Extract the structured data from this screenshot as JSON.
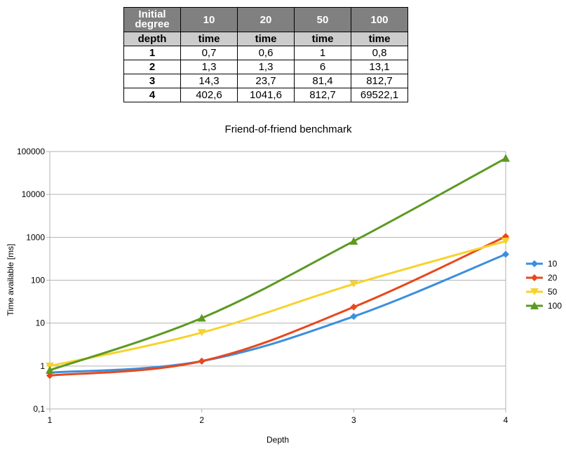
{
  "table": {
    "header": [
      "Initial degree",
      "10",
      "20",
      "50",
      "100"
    ],
    "subheader": [
      "depth",
      "time",
      "time",
      "time",
      "time"
    ],
    "rows": [
      [
        "1",
        "0,7",
        "0,6",
        "1",
        "0,8"
      ],
      [
        "2",
        "1,3",
        "1,3",
        "6",
        "13,1"
      ],
      [
        "3",
        "14,3",
        "23,7",
        "81,4",
        "812,7"
      ],
      [
        "4",
        "402,6",
        "1041,6",
        "812,7",
        "69522,1"
      ]
    ]
  },
  "chart_data": {
    "type": "line",
    "title": "Friend-of-friend benchmark",
    "xlabel": "Depth",
    "ylabel": "Time available [ms]",
    "x": [
      1,
      2,
      3,
      4
    ],
    "x_tick_labels": [
      "1",
      "2",
      "3",
      "4"
    ],
    "y_scale": "log",
    "ylim": [
      0.1,
      100000
    ],
    "y_tick_labels": [
      "0,1",
      "1",
      "10",
      "100",
      "1000",
      "10000",
      "100000"
    ],
    "grid": "horizontal",
    "legend": "right",
    "series": [
      {
        "name": "10",
        "values": [
          0.7,
          1.3,
          14.3,
          402.6
        ],
        "color": "#3b8fdd",
        "marker": "diamond"
      },
      {
        "name": "20",
        "values": [
          0.6,
          1.3,
          23.7,
          1041.6
        ],
        "color": "#e8481c",
        "marker": "diamond"
      },
      {
        "name": "50",
        "values": [
          1,
          6,
          81.4,
          812.7
        ],
        "color": "#f7d22c",
        "marker": "triangle-down"
      },
      {
        "name": "100",
        "values": [
          0.8,
          13.1,
          812.7,
          69522.1
        ],
        "color": "#5b9a22",
        "marker": "triangle-up"
      }
    ]
  }
}
